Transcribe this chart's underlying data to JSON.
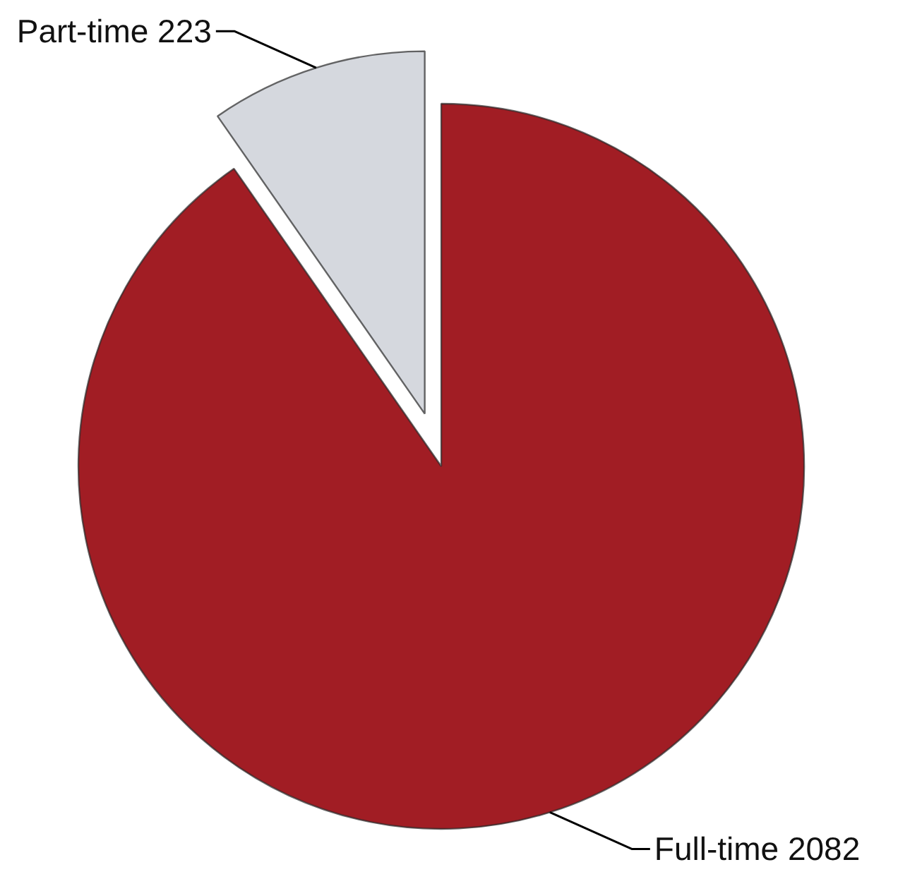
{
  "chart_data": {
    "type": "pie",
    "categories": [
      "Full-time",
      "Part-time"
    ],
    "values": [
      2082,
      223
    ],
    "colors": [
      "#a11d24",
      "#d5d8de"
    ],
    "data_labels": true
  }
}
